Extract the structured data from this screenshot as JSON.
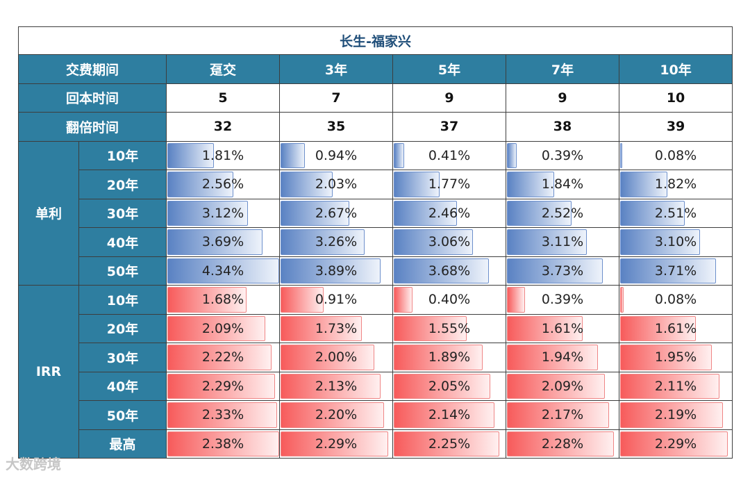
{
  "title": "长生-福家兴",
  "headers": [
    "交费期间",
    "趸交",
    "3年",
    "5年",
    "7年",
    "10年"
  ],
  "payback": {
    "label": "回本时间",
    "values": [
      "5",
      "7",
      "9",
      "9",
      "10"
    ]
  },
  "double": {
    "label": "翻倍时间",
    "values": [
      "32",
      "35",
      "37",
      "38",
      "39"
    ]
  },
  "simple": {
    "label": "单利",
    "color": "#5a82c3",
    "rows": [
      {
        "label": "10年",
        "values": [
          "1.81%",
          "0.94%",
          "0.41%",
          "0.39%",
          "0.08%"
        ]
      },
      {
        "label": "20年",
        "values": [
          "2.56%",
          "2.03%",
          "1.77%",
          "1.84%",
          "1.82%"
        ]
      },
      {
        "label": "30年",
        "values": [
          "3.12%",
          "2.67%",
          "2.46%",
          "2.52%",
          "2.51%"
        ]
      },
      {
        "label": "40年",
        "values": [
          "3.69%",
          "3.26%",
          "3.06%",
          "3.11%",
          "3.10%"
        ]
      },
      {
        "label": "50年",
        "values": [
          "4.34%",
          "3.89%",
          "3.68%",
          "3.73%",
          "3.71%"
        ]
      }
    ]
  },
  "irr": {
    "label": "IRR",
    "color": "#f75b5b",
    "rows": [
      {
        "label": "10年",
        "values": [
          "1.68%",
          "0.91%",
          "0.40%",
          "0.39%",
          "0.08%"
        ]
      },
      {
        "label": "20年",
        "values": [
          "2.09%",
          "1.73%",
          "1.55%",
          "1.61%",
          "1.61%"
        ]
      },
      {
        "label": "30年",
        "values": [
          "2.22%",
          "2.00%",
          "1.89%",
          "1.94%",
          "1.95%"
        ]
      },
      {
        "label": "40年",
        "values": [
          "2.29%",
          "2.13%",
          "2.05%",
          "2.09%",
          "2.11%"
        ]
      },
      {
        "label": "50年",
        "values": [
          "2.33%",
          "2.20%",
          "2.14%",
          "2.17%",
          "2.19%"
        ]
      },
      {
        "label": "最高",
        "values": [
          "2.38%",
          "2.29%",
          "2.25%",
          "2.28%",
          "2.29%"
        ]
      }
    ]
  },
  "watermark": "大数跨境"
}
